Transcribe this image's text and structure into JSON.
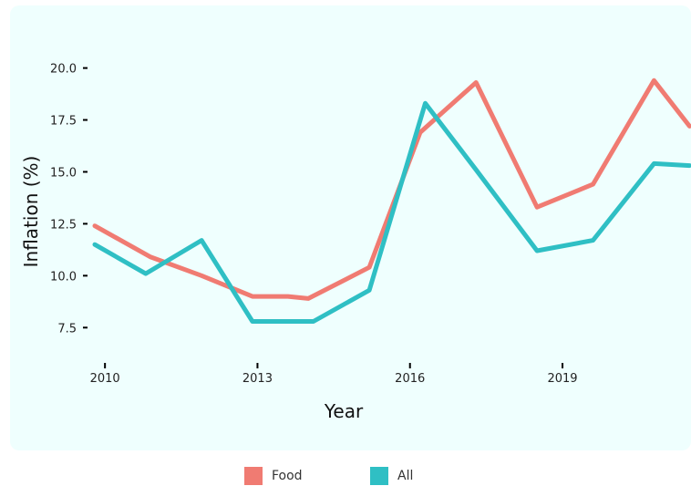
{
  "chart_data": {
    "type": "line",
    "xlabel": "Year",
    "ylabel": "Inflation (%)",
    "xlim": [
      2009.8,
      2021.6
    ],
    "ylim": [
      5.8,
      21.3
    ],
    "x_ticks": [
      2010,
      2013,
      2016,
      2019
    ],
    "y_ticks": [
      7.5,
      10.0,
      12.5,
      15.0,
      17.5,
      20.0
    ],
    "y_tick_labels": [
      "7.5",
      "10.0",
      "12.5",
      "15.0",
      "17.5",
      "20.0"
    ],
    "legend_position": "bottom",
    "series": [
      {
        "name": "Food",
        "color": "#f07b72",
        "points": [
          [
            2009.8,
            12.4
          ],
          [
            2010.9,
            10.9
          ],
          [
            2011.9,
            10.0
          ],
          [
            2012.9,
            9.0
          ],
          [
            2013.6,
            9.0
          ],
          [
            2014.0,
            8.9
          ],
          [
            2015.2,
            10.4
          ],
          [
            2016.2,
            16.9
          ],
          [
            2017.3,
            19.3
          ],
          [
            2018.5,
            13.3
          ],
          [
            2019.6,
            14.4
          ],
          [
            2020.8,
            19.4
          ],
          [
            2021.5,
            17.2
          ]
        ]
      },
      {
        "name": "All",
        "color": "#2fbfc4",
        "points": [
          [
            2009.8,
            11.5
          ],
          [
            2010.8,
            10.1
          ],
          [
            2011.9,
            11.7
          ],
          [
            2012.9,
            7.8
          ],
          [
            2013.4,
            7.8
          ],
          [
            2014.1,
            7.8
          ],
          [
            2015.2,
            9.3
          ],
          [
            2016.3,
            18.3
          ],
          [
            2017.3,
            15.1
          ],
          [
            2018.5,
            11.2
          ],
          [
            2019.6,
            11.7
          ],
          [
            2020.8,
            15.4
          ],
          [
            2021.5,
            15.3
          ]
        ]
      }
    ]
  }
}
